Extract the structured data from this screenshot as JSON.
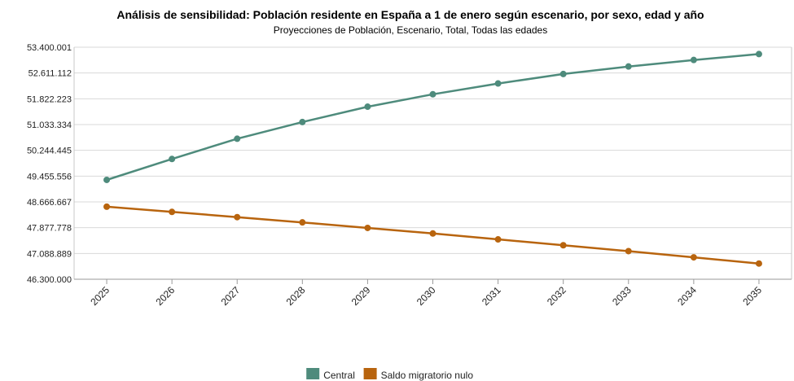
{
  "chart_data": {
    "type": "line",
    "title": "Análisis de sensibilidad: Población residente en España a 1 de enero según escenario, por sexo, edad y año",
    "subtitle": "Proyecciones de Población, Escenario, Total, Todas las edades",
    "x": [
      "2025",
      "2026",
      "2027",
      "2028",
      "2029",
      "2030",
      "2031",
      "2032",
      "2033",
      "2034",
      "2035"
    ],
    "yticks": [
      "46.300.000",
      "47.088.889",
      "47.877.778",
      "48.666.667",
      "49.455.556",
      "50.244.445",
      "51.033.334",
      "51.822.223",
      "52.611.112",
      "53.400.001"
    ],
    "ylim": [
      46300000,
      53400001
    ],
    "grid": true,
    "legend_position": "bottom",
    "series": [
      {
        "name": "Central",
        "color": "#4e8b7c",
        "values": [
          49340000,
          49980000,
          50600000,
          51110000,
          51580000,
          51960000,
          52290000,
          52580000,
          52810000,
          53010000,
          53190000
        ]
      },
      {
        "name": "Saldo migratorio nulo",
        "color": "#b8640e",
        "values": [
          48520000,
          48360000,
          48200000,
          48040000,
          47870000,
          47700000,
          47520000,
          47340000,
          47160000,
          46970000,
          46780000
        ]
      }
    ]
  }
}
